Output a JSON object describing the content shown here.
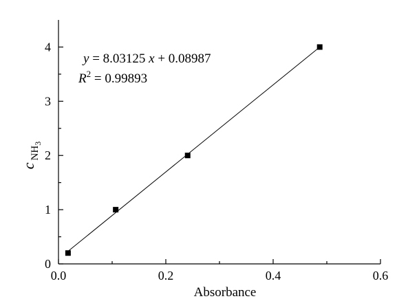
{
  "chart_data": {
    "type": "scatter",
    "xlabel": "Absorbance",
    "ylabel": {
      "base": "c",
      "subscript": "NH",
      "subsub": "3"
    },
    "xlim": [
      0.0,
      0.6
    ],
    "ylim": [
      0,
      4.5
    ],
    "x_ticks": [
      0.0,
      0.2,
      0.4,
      0.6
    ],
    "x_tick_labels": [
      "0.0",
      "0.2",
      "0.4",
      "0.6"
    ],
    "y_ticks": [
      0,
      1,
      2,
      3,
      4
    ],
    "y_tick_labels": [
      "0",
      "1",
      "2",
      "3",
      "4"
    ],
    "grid": false,
    "series": [
      {
        "marker": "square",
        "color": "#000000",
        "x": [
          0.0178,
          0.1066,
          0.2407,
          0.4868
        ],
        "y": [
          0.2,
          1.0,
          2.0,
          4.0
        ]
      }
    ],
    "fit": {
      "slope": 8.03125,
      "intercept": 0.08987,
      "x_range": [
        0.0178,
        0.4868
      ]
    },
    "annotation": {
      "equation": {
        "y_var": "y",
        "equals_slope": " = 8.03125 ",
        "x_var": "x",
        "intercept_part": " + 0.08987"
      },
      "r_squared": {
        "var": "R",
        "sup": "2",
        "value": " = 0.99893"
      }
    }
  }
}
